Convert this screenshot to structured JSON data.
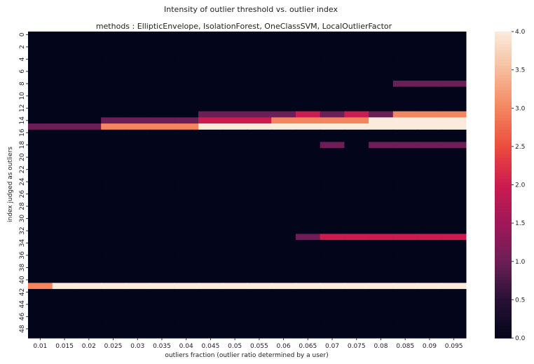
{
  "chart_data": {
    "type": "heatmap",
    "title": "Intensity of outlier threshold vs. outlier index",
    "subtitle": "methods : EllipticEnvelope, IsolationForest, OneClassSVM, LocalOutlierFactor",
    "xlabel": "outliers fraction (outlier ratio determined by a user)",
    "ylabel": "index judged as outliers",
    "x": [
      "0.01",
      "0.015",
      "0.02",
      "0.025",
      "0.03",
      "0.035",
      "0.04",
      "0.045",
      "0.05",
      "0.055",
      "0.06",
      "0.065",
      "0.07",
      "0.075",
      "0.08",
      "0.085",
      "0.09",
      "0.095"
    ],
    "y_count": 50,
    "y_tick_labels": [
      "0",
      "2",
      "4",
      "6",
      "8",
      "10",
      "12",
      "14",
      "16",
      "18",
      "20",
      "22",
      "24",
      "26",
      "28",
      "30",
      "32",
      "34",
      "36",
      "38",
      "40",
      "42",
      "44",
      "46",
      "48"
    ],
    "default_value": 0,
    "nonzero_rows": {
      "8": [
        0,
        0,
        0,
        0,
        0,
        0,
        0,
        0,
        0,
        0,
        0,
        0,
        0,
        0,
        0,
        1,
        1,
        1
      ],
      "13": [
        0,
        0,
        0,
        0,
        0,
        0,
        0,
        1,
        1,
        1,
        1,
        2,
        1,
        2,
        1,
        3,
        3,
        3
      ],
      "14": [
        0,
        0,
        0,
        1,
        1,
        1,
        1,
        2,
        2,
        2,
        3,
        3,
        3,
        3,
        4,
        4,
        4,
        4
      ],
      "15": [
        1,
        1,
        1,
        3,
        3,
        3,
        3,
        4,
        4,
        4,
        4,
        4,
        4,
        4,
        4,
        4,
        4,
        4
      ],
      "18": [
        0,
        0,
        0,
        0,
        0,
        0,
        0,
        0,
        0,
        0,
        0,
        0,
        1,
        0,
        1,
        1,
        1,
        1
      ],
      "33": [
        0,
        0,
        0,
        0,
        0,
        0,
        0,
        0,
        0,
        0,
        0,
        1,
        2,
        2,
        2,
        2,
        2,
        2
      ],
      "41": [
        3,
        4,
        4,
        4,
        4,
        4,
        4,
        4,
        4,
        4,
        4,
        4,
        4,
        4,
        4,
        4,
        4,
        4
      ]
    },
    "colorbar": {
      "range": [
        0,
        4
      ],
      "ticks": [
        "0.0",
        "0.5",
        "1.0",
        "1.5",
        "2.0",
        "2.5",
        "3.0",
        "3.5",
        "4.0"
      ],
      "colormap": "rocket"
    },
    "grid": false
  }
}
